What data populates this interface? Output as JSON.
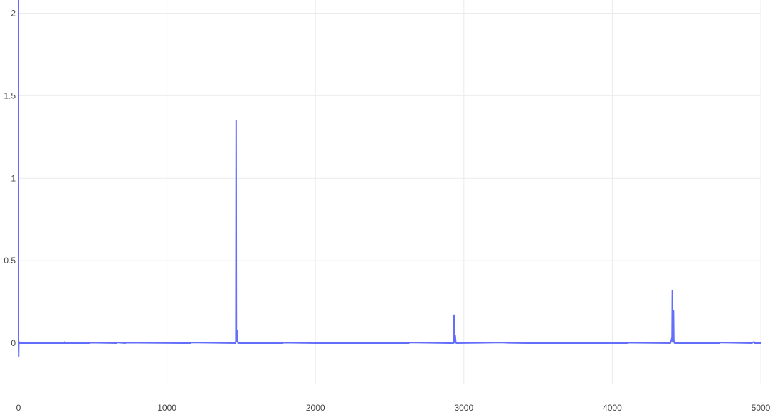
{
  "chart_data": {
    "type": "line",
    "title": "",
    "xlabel": "",
    "ylabel": "",
    "xlim": [
      0,
      5000
    ],
    "ylim": [
      -0.25,
      2.08
    ],
    "grid": true,
    "legend": "none",
    "x_ticks": [
      0,
      1000,
      2000,
      3000,
      4000,
      5000
    ],
    "x_tick_labels": [
      "0",
      "1000",
      "2000",
      "3000",
      "4000",
      "5000"
    ],
    "y_ticks": [
      0,
      0.5,
      1,
      1.5,
      2
    ],
    "y_tick_labels": [
      "0",
      "0.5",
      "1",
      "1.5",
      "2"
    ],
    "colors": {
      "line": "#636efa",
      "grid": "#ebebeb",
      "text": "#444444"
    },
    "series": [
      {
        "values_x": [
          0,
          1,
          2,
          3,
          120,
          122,
          124,
          310,
          312,
          314,
          480,
          483,
          660,
          663,
          720,
          723,
          1160,
          1163,
          1460,
          1462,
          1464,
          1466,
          1468,
          1470,
          1472,
          1474,
          1476,
          1478,
          1480,
          1600,
          1780,
          1783,
          2000,
          2300,
          2630,
          2633,
          2900,
          2930,
          2932,
          2934,
          2936,
          2938,
          2940,
          2942,
          2944,
          2946,
          2950,
          3100,
          3250,
          3300,
          3420,
          3600,
          3800,
          4100,
          4103,
          4390,
          4395,
          4398,
          4400,
          4402,
          4404,
          4406,
          4408,
          4410,
          4412,
          4414,
          4416,
          4420,
          4600,
          4720,
          4723,
          4940,
          4950,
          4955,
          4960,
          5000
        ],
        "values_y": [
          0,
          -0.08,
          0.01,
          0,
          0,
          0.004,
          0,
          0,
          0.008,
          0,
          0,
          0.003,
          0,
          0.004,
          0,
          0.003,
          0,
          0.004,
          0,
          0.004,
          0.012,
          1.35,
          0.02,
          0.07,
          0.01,
          0.075,
          0.02,
          0.004,
          0,
          0,
          0,
          0.003,
          0,
          0,
          0,
          0.004,
          0,
          0,
          0.008,
          0.17,
          0.01,
          0.04,
          0.003,
          0.045,
          0.02,
          0.004,
          0,
          0.002,
          0.004,
          0.002,
          0,
          0,
          0,
          0,
          0.003,
          0,
          0.01,
          0.02,
          0.03,
          0.02,
          0.32,
          0.01,
          0.2,
          0.01,
          0.195,
          0.02,
          0.005,
          0,
          0,
          0,
          0.004,
          0,
          0.006,
          0.008,
          0,
          0
        ]
      }
    ]
  }
}
